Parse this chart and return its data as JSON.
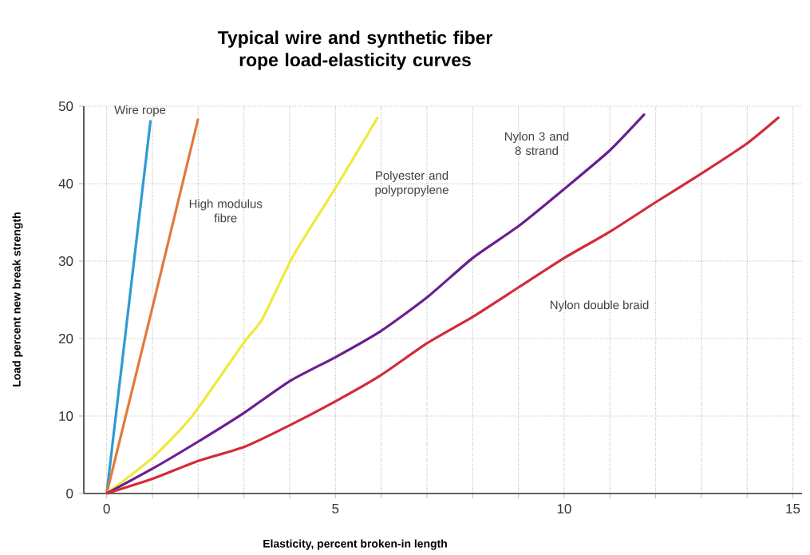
{
  "chart_data": {
    "type": "line",
    "title": "Typical wire and synthetic fiber rope load-elasticity curves",
    "xlabel": "Elasticity, percent broken-in length",
    "ylabel": "Load percent new break strength",
    "series": [
      {
        "name": "Wire rope",
        "color": "#2e9bd0",
        "x": [
          0,
          0.96
        ],
        "values": [
          0,
          48.2
        ]
      },
      {
        "name": "High modulus fibre",
        "color": "#e07b39",
        "x": [
          0,
          1,
          2.0
        ],
        "values": [
          0,
          24,
          48.4
        ]
      },
      {
        "name": "Polyester and polypropylene",
        "color": "#eeea3a",
        "x": [
          0,
          1,
          1.87,
          3,
          3.4,
          4.08,
          5.06,
          5.93
        ],
        "values": [
          0,
          4.6,
          10,
          19.5,
          22.5,
          30.7,
          40,
          48.6
        ]
      },
      {
        "name": "Nylon 3 and 8 strand",
        "color": "#6a1f8f",
        "x": [
          0,
          1,
          2,
          3,
          4,
          5,
          6,
          7,
          8,
          9,
          10,
          11,
          11.76
        ],
        "values": [
          0,
          3.2,
          6.7,
          10.4,
          14.5,
          17.6,
          21,
          25.3,
          30.4,
          34.5,
          39.3,
          44.3,
          49
        ]
      },
      {
        "name": "Nylon double braid",
        "color": "#d42a3a",
        "x": [
          0,
          1,
          2,
          3,
          4,
          5,
          6,
          7,
          8,
          9,
          10,
          11,
          12,
          13,
          14,
          14.7
        ],
        "values": [
          0,
          1.9,
          4.2,
          6,
          8.8,
          11.9,
          15.3,
          19.4,
          22.8,
          26.6,
          30.4,
          33.8,
          37.6,
          41.3,
          45.2,
          48.6
        ]
      }
    ],
    "xlim": [
      -0.5,
      15.2
    ],
    "ylim": [
      0,
      50
    ],
    "xticks": [
      0,
      {
        "value": 1,
        "label": null
      },
      {
        "value": 2,
        "label": null
      },
      {
        "value": 3,
        "label": null
      },
      {
        "value": 4,
        "label": null
      },
      5,
      {
        "value": 6,
        "label": null
      },
      {
        "value": 7,
        "label": null
      },
      {
        "value": 8,
        "label": null
      },
      {
        "value": 9,
        "label": null
      },
      10,
      {
        "value": 11,
        "label": null
      },
      {
        "value": 12,
        "label": null
      },
      {
        "value": 13,
        "label": null
      },
      {
        "value": 14,
        "label": null
      },
      15
    ],
    "yticks": [
      0,
      10,
      20,
      30,
      40,
      50
    ],
    "grid": true
  }
}
